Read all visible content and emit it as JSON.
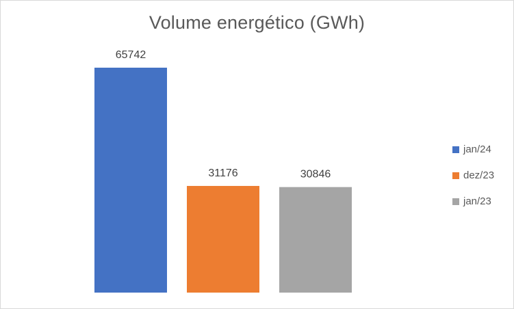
{
  "chart_data": {
    "type": "bar",
    "title": "Volume energético (GWh)",
    "categories": [
      "jan/24",
      "dez/23",
      "jan/23"
    ],
    "values": [
      65742,
      31176,
      30846
    ],
    "colors": [
      "#4472c4",
      "#ed7d31",
      "#a5a5a5"
    ],
    "data_labels": [
      "65742",
      "31176",
      "30846"
    ],
    "xlabel": "",
    "ylabel": "",
    "ylim": [
      0,
      65742
    ],
    "grid": false,
    "axes_visible": false,
    "legend": {
      "placement": "right",
      "entries": [
        {
          "label": "jan/24",
          "color": "#4472c4"
        },
        {
          "label": "dez/23",
          "color": "#ed7d31"
        },
        {
          "label": "jan/23",
          "color": "#a5a5a5"
        }
      ]
    }
  }
}
